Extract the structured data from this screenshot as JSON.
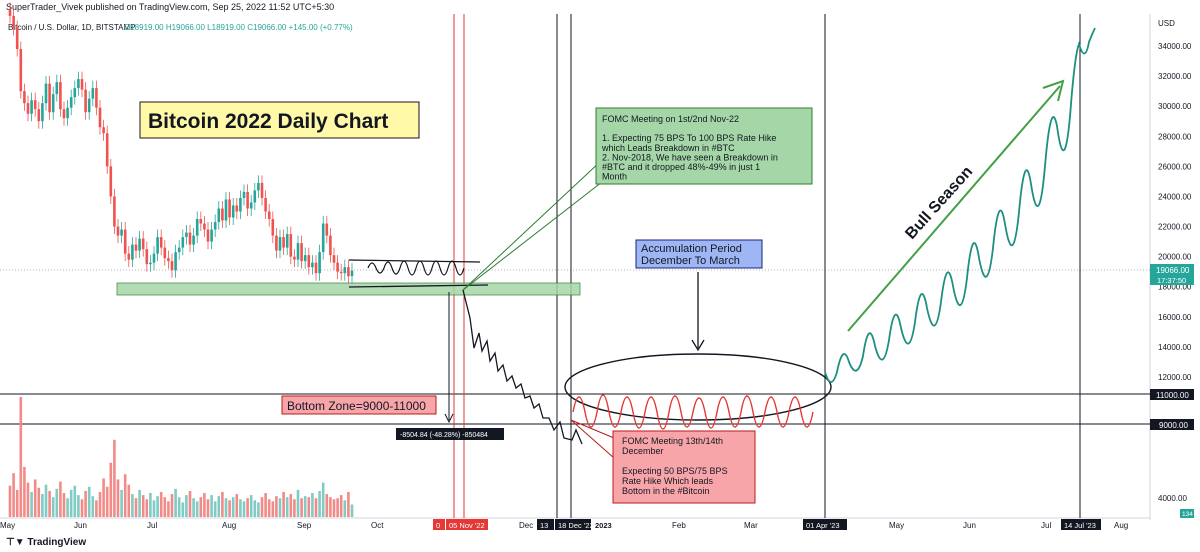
{
  "header": {
    "publisher": "SuperTrader_Vivek published on TradingView.com, Sep 25, 2022 11:52 UTC+5:30",
    "symbol": "Bitcoin / U.S. Dollar, 1D, BITSTAMP",
    "ohlc": "O18919.00 H19066.00 L18919.00 C19066.00 +145.00 (+0.77%)"
  },
  "footer": {
    "brand": "TradingView"
  },
  "colors": {
    "up": "#26a69a",
    "down": "#ef5350",
    "accent": "#26a69a",
    "title_bg": "#fff9a8",
    "green_box": "#a5d6a7",
    "blue_box": "#9fb6f5",
    "red_box": "#f8a5aa"
  },
  "annotations": {
    "title": "Bitcoin 2022 Daily Chart",
    "fomc_nov": [
      "FOMC Meeting on 1st/2nd Nov-22",
      "",
      "1. Expecting 75 BPS To 100 BPS Rate Hike",
      "which Leads Breakdown in #BTC",
      "2. Nov-2018, We have seen a Breakdown in",
      "#BTC and it dropped 48%-49% in just 1",
      "Month"
    ],
    "accumulation": [
      "Accumulation Period",
      "December To March"
    ],
    "bottom_zone": "Bottom Zone=9000-11000",
    "measure": "-8504.84 (-48.28%) -850484",
    "fomc_dec": [
      "FOMC Meeting 13th/14th",
      "December",
      "",
      "Expecting 50 BPS/75 BPS",
      "Rate Hike Which leads",
      "Bottom in the #Bitcoin"
    ],
    "bull": "Bull Season"
  },
  "chart_data": {
    "type": "candlestick",
    "title": "",
    "y_unit": "USD",
    "ylim": [
      3000,
      36000
    ],
    "y_ticks": [
      "34000.00",
      "32000.00",
      "30000.00",
      "28000.00",
      "26000.00",
      "24000.00",
      "22000.00",
      "20000.00",
      "18000.00",
      "16000.00",
      "14000.00",
      "12000.00",
      "4000.00"
    ],
    "x_ticks": [
      "May",
      "Jun",
      "Jul",
      "Aug",
      "Sep",
      "Oct",
      "Dec",
      "Feb",
      "Mar",
      "May",
      "Jun",
      "Jul",
      "Aug"
    ],
    "x_highlight_labels": [
      "0",
      "05 Nov '22",
      "13",
      "18 Dec '22",
      "2023",
      "01 Apr '23",
      "14 Jul '23"
    ],
    "price_labels": {
      "last": "19066.00",
      "countdown": "17:37:50",
      "level_high": "11000.00",
      "level_low": "9000.00",
      "volume_last": "134"
    },
    "horizontal_levels": [
      11000,
      9000
    ],
    "candles_close": [
      36000,
      35200,
      33800,
      31000,
      30200,
      29500,
      30400,
      29800,
      29000,
      30200,
      31500,
      29600,
      30800,
      31600,
      29800,
      29200,
      29900,
      30600,
      31200,
      31800,
      31100,
      29600,
      30500,
      31200,
      29900,
      28600,
      28200,
      26000,
      24000,
      22000,
      21400,
      21800,
      20200,
      19800,
      20800,
      20400,
      21200,
      20500,
      19500,
      19600,
      20200,
      21300,
      20600,
      19900,
      19700,
      19100,
      20300,
      20600,
      21300,
      21600,
      20800,
      21400,
      22500,
      22200,
      21800,
      21000,
      21800,
      22300,
      23200,
      22400,
      23800,
      22600,
      23400,
      23000,
      23900,
      24300,
      23200,
      23600,
      24400,
      24900,
      23900,
      23000,
      22500,
      21400,
      20400,
      21300,
      20600,
      21500,
      20000,
      19800,
      20900,
      19700,
      20100,
      19300,
      19600,
      18900,
      20300,
      22200,
      21400,
      20100,
      19600,
      19000,
      18900,
      19300,
      18700,
      19066
    ],
    "volume_max": 11500
  }
}
